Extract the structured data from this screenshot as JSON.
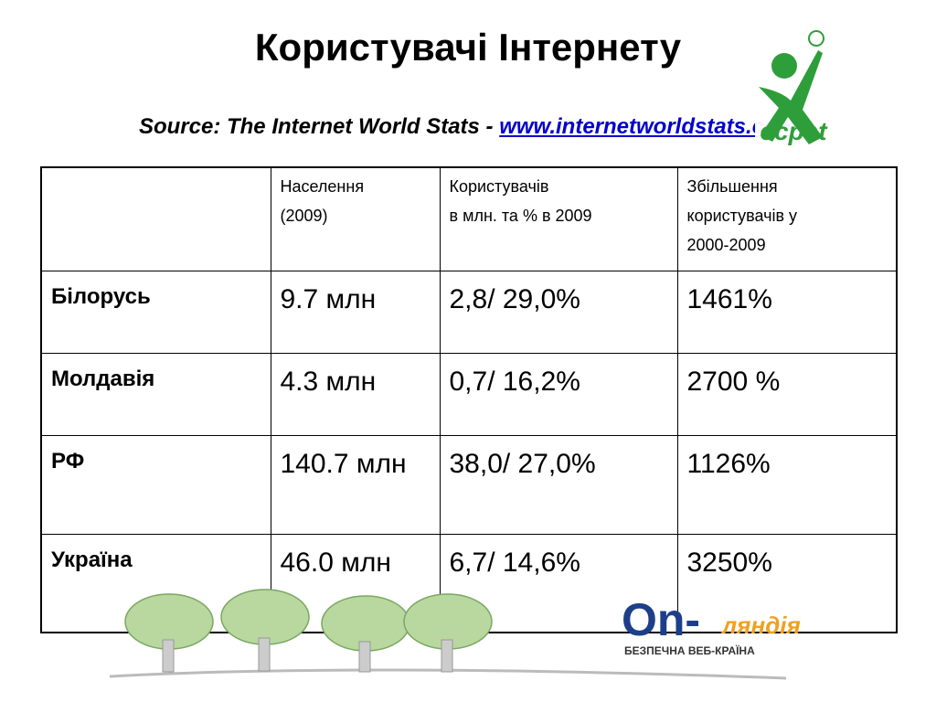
{
  "header": {
    "title": "Користувачі Інтернету",
    "source": {
      "prefix": "Source: The Internet World Stats - ",
      "link": "www.internetworldstats.com"
    }
  },
  "table": {
    "header": [
      [
        "Населення",
        "(2009)"
      ],
      [
        "Користувачів",
        "в млн. та % в 2009"
      ],
      [
        "Збільшення",
        "користувачів у",
        "2000-2009"
      ]
    ],
    "rows": [
      [
        "Білорусь",
        "9.7 млн",
        "2,8/ 29,0%",
        "1461%"
      ],
      [
        "Молдавія",
        "4.3 млн",
        "0,7/ 16,2%",
        "2700 %"
      ],
      [
        "РФ",
        "140.7 млн",
        "38,0/ 27,0%",
        "1126%"
      ],
      [
        "Україна",
        "46.0 млн",
        "6,7/ 14,6%",
        "3250%"
      ]
    ]
  },
  "logos": {
    "ecpat": "ecpat",
    "online": {
      "on": "On-",
      "landia": "ляндія",
      "tagline": "БЕЗПЕЧНА ВЕБ-КРАЇНА"
    }
  }
}
